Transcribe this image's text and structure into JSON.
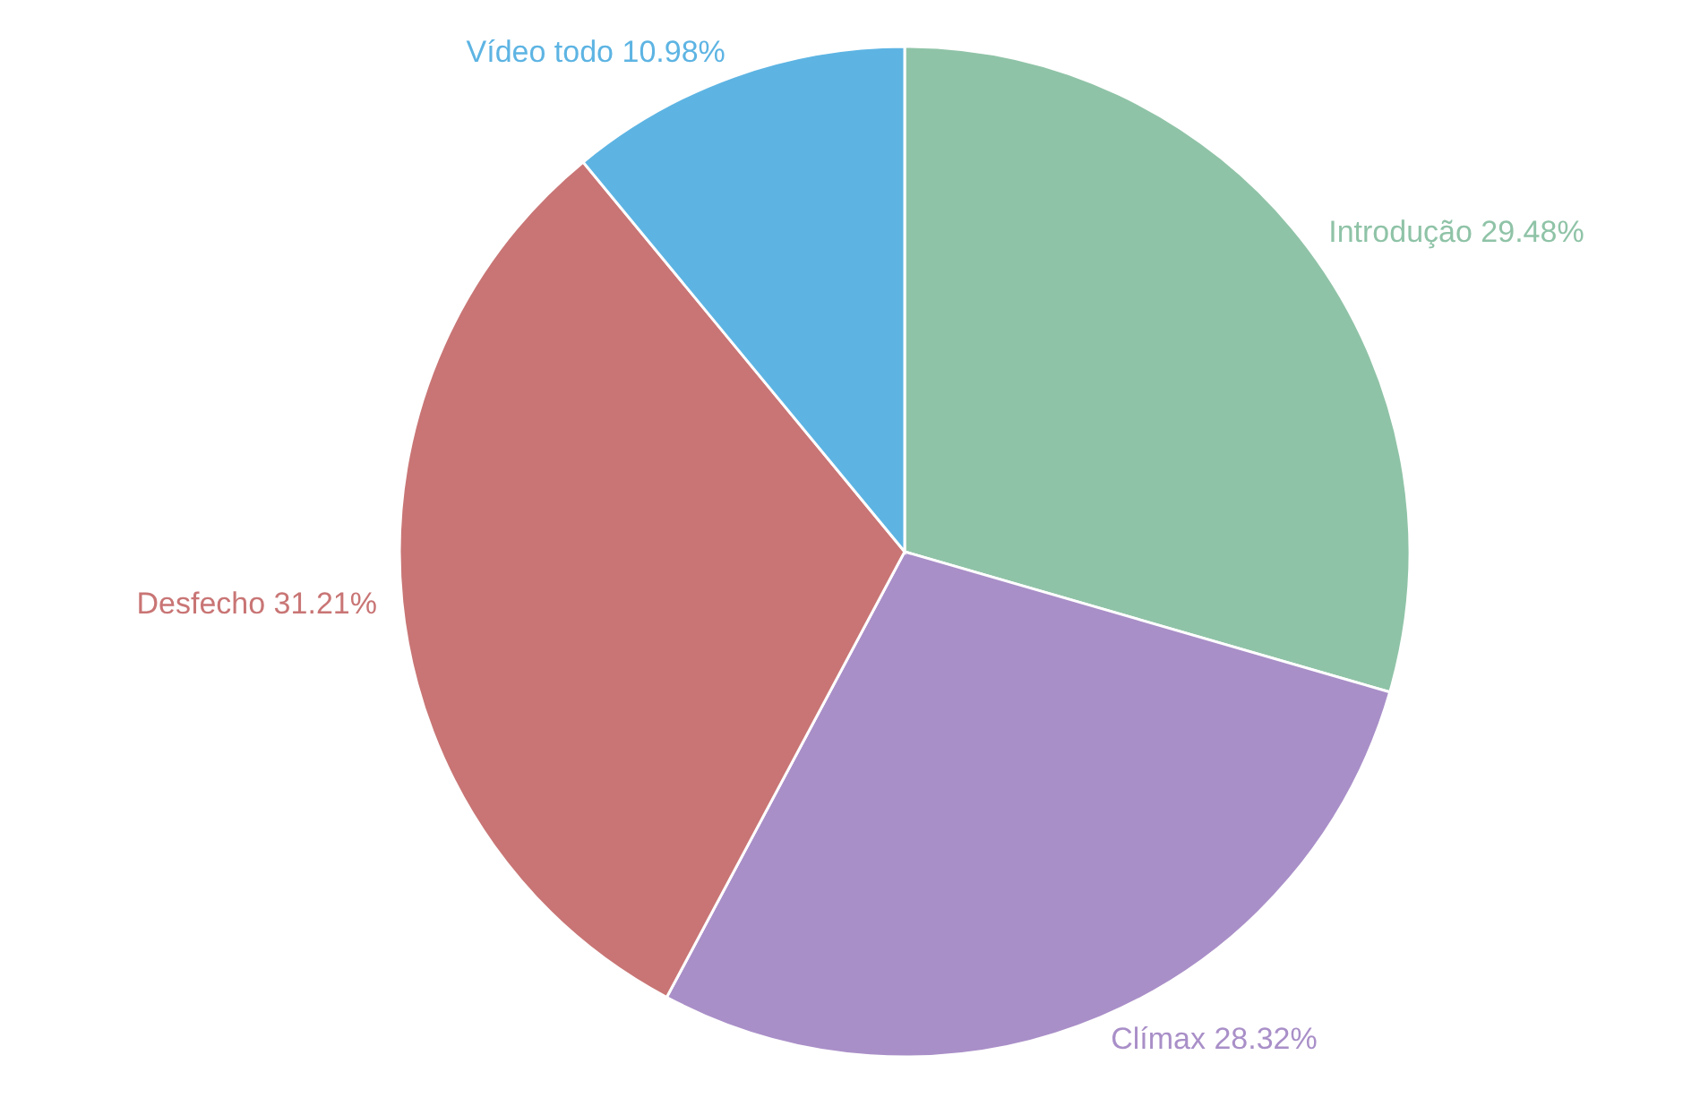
{
  "chart_data": {
    "type": "pie",
    "categories": [
      "Introdução",
      "Clímax",
      "Desfecho",
      "Vídeo todo"
    ],
    "values": [
      29.48,
      28.32,
      31.21,
      10.98
    ],
    "value_labels": [
      "29.48%",
      "28.32%",
      "31.21%",
      "10.98%"
    ],
    "colors": [
      "#8fc3a7",
      "#a98fc8",
      "#c97575",
      "#5db4e3"
    ]
  }
}
